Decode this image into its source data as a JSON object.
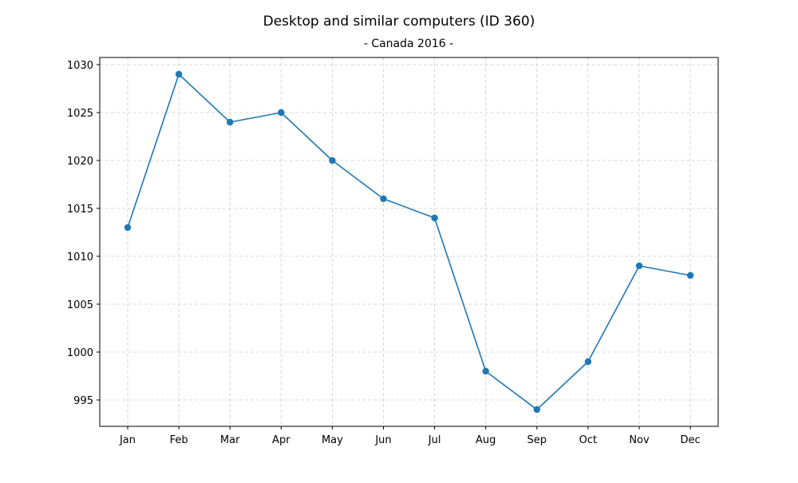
{
  "chart_data": {
    "type": "line",
    "title": "Desktop and similar computers (ID 360)",
    "subtitle": "- Canada 2016 -",
    "xlabel": "",
    "ylabel": "",
    "categories": [
      "Jan",
      "Feb",
      "Mar",
      "Apr",
      "May",
      "Jun",
      "Jul",
      "Aug",
      "Sep",
      "Oct",
      "Nov",
      "Dec"
    ],
    "values": [
      1013,
      1029,
      1024,
      1025,
      1020,
      1016,
      1014,
      998,
      994,
      999,
      1009,
      1008
    ],
    "yticks": [
      995,
      1000,
      1005,
      1010,
      1015,
      1020,
      1025,
      1030
    ],
    "ylim": [
      992.25,
      1030.75
    ],
    "grid": true,
    "colors": {
      "line": "#1f77b4",
      "grid": "#cccccc",
      "axis": "#000000"
    }
  }
}
